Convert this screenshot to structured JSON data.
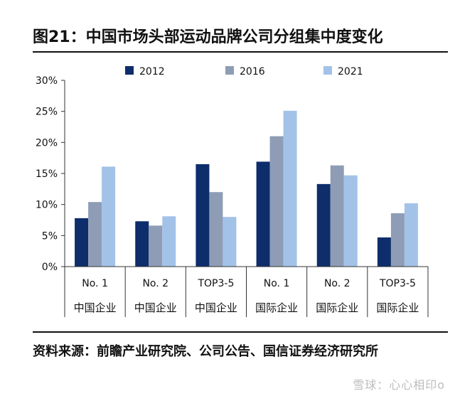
{
  "header": {
    "title": "图21：中国市场头部运动品牌公司分组集中度变化"
  },
  "footer": {
    "source": "资料来源：前瞻产业研究院、公司公告、国信证券经济研究所",
    "watermark": "雪球：心心相印o"
  },
  "chart_data": {
    "type": "bar",
    "categories": [
      [
        "No. 1",
        "中国企业"
      ],
      [
        "No. 2",
        "中国企业"
      ],
      [
        "TOP3-5",
        "中国企业"
      ],
      [
        "No. 1",
        "国际企业"
      ],
      [
        "No. 2",
        "国际企业"
      ],
      [
        "TOP3-5",
        "国际企业"
      ]
    ],
    "series": [
      {
        "name": "2012",
        "color": "#0d2d6b",
        "values": [
          7.8,
          7.3,
          16.5,
          16.9,
          13.3,
          4.7
        ]
      },
      {
        "name": "2016",
        "color": "#8e9db5",
        "values": [
          10.4,
          6.6,
          12.0,
          21.0,
          16.3,
          8.6
        ]
      },
      {
        "name": "2021",
        "color": "#a3c2e8",
        "values": [
          16.1,
          8.1,
          8.0,
          25.1,
          14.7,
          10.2
        ]
      }
    ],
    "yticks": [
      "0%",
      "5%",
      "10%",
      "15%",
      "20%",
      "25%",
      "30%"
    ],
    "ylim": [
      0,
      30
    ],
    "legend_position": "top-center"
  }
}
